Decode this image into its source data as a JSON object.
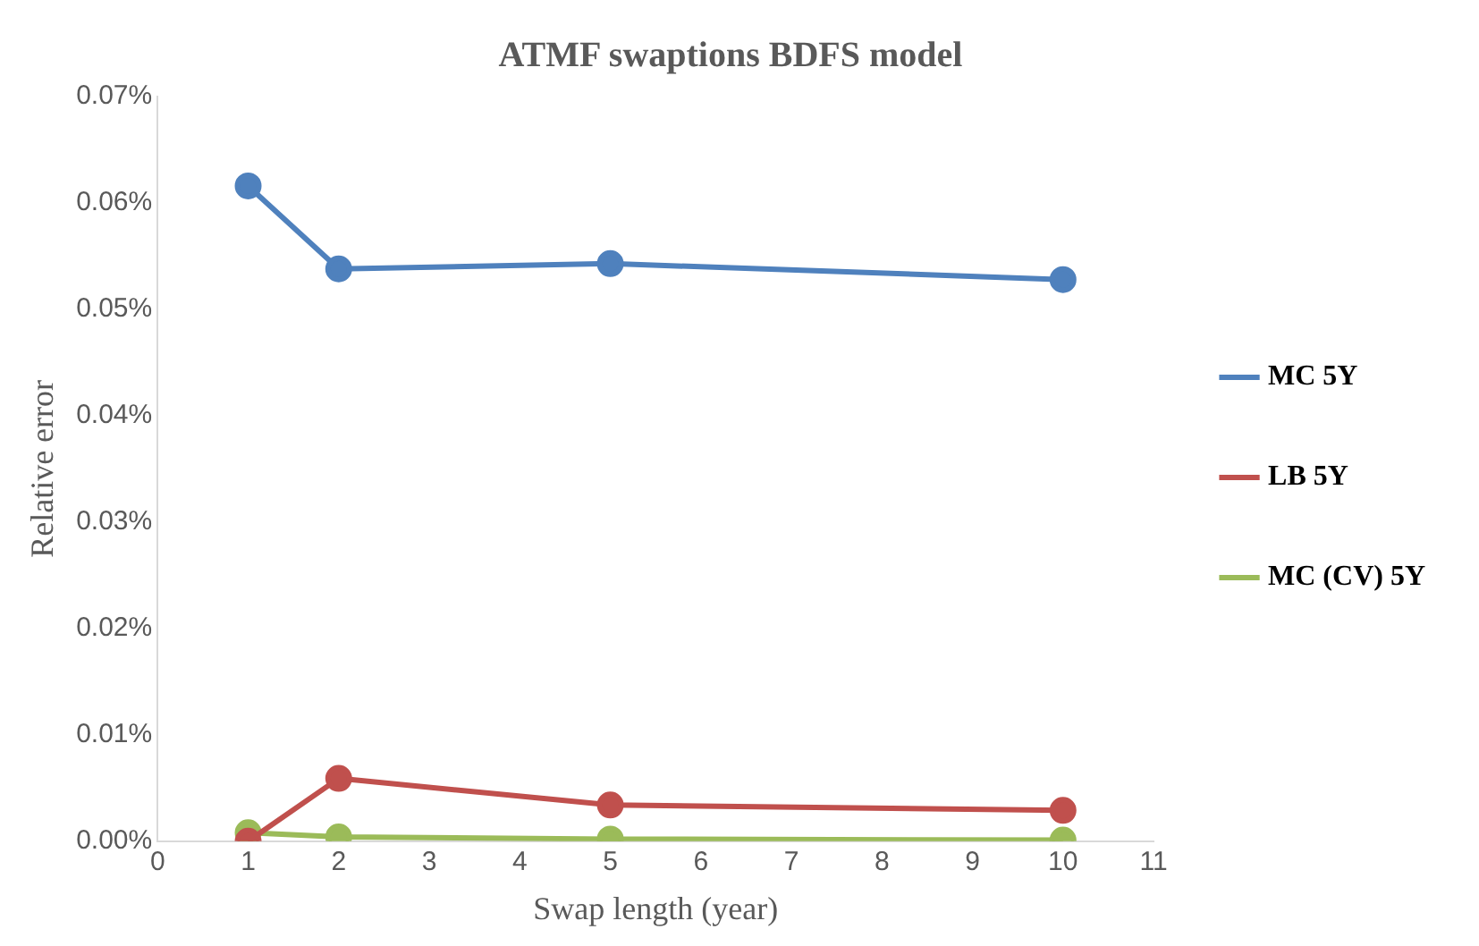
{
  "chart_data": {
    "type": "line",
    "title": "ATMF swaptions BDFS model",
    "xlabel": "Swap length (year)",
    "ylabel": "Relative error",
    "x": [
      1,
      2,
      5,
      10
    ],
    "series": [
      {
        "name": "MC 5Y",
        "color": "#4f81bd",
        "values": [
          0.0616,
          0.0538,
          0.0543,
          0.0528
        ]
      },
      {
        "name": "LB 5Y",
        "color": "#c0504d",
        "values": [
          0,
          0.0059,
          0.0034,
          0.0029
        ]
      },
      {
        "name": "MC (CV) 5Y",
        "color": "#9bbb59",
        "values": [
          0.0008,
          0.0004,
          0.0002,
          0.0001
        ]
      }
    ],
    "xlim": [
      0,
      11
    ],
    "xticks": [
      0,
      1,
      2,
      3,
      4,
      5,
      6,
      7,
      8,
      9,
      10,
      11
    ],
    "ylim": [
      0,
      0.07
    ],
    "yticks": [
      {
        "value": 0,
        "label": "0.00%"
      },
      {
        "value": 0.01,
        "label": "0.01%"
      },
      {
        "value": 0.02,
        "label": "0.02%"
      },
      {
        "value": 0.03,
        "label": "0.03%"
      },
      {
        "value": 0.04,
        "label": "0.04%"
      },
      {
        "value": 0.05,
        "label": "0.05%"
      },
      {
        "value": 0.06,
        "label": "0.06%"
      },
      {
        "value": 0.07,
        "label": "0.07%"
      }
    ],
    "grid": false,
    "legend": "right",
    "marker": "circle",
    "line_style": "solid"
  }
}
